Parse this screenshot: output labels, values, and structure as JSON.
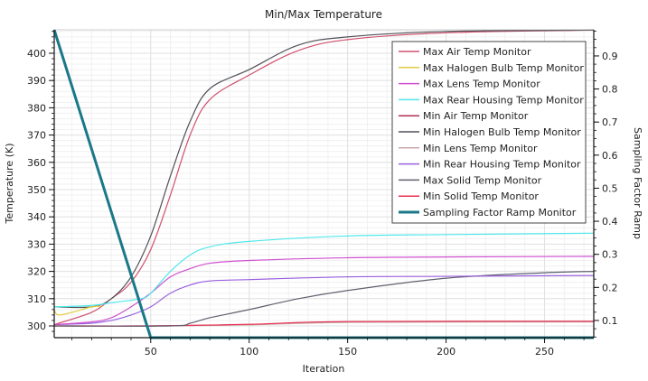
{
  "chart_data": {
    "type": "line",
    "title": "Min/Max Temperature",
    "xlabel": "Iteration",
    "ylabel": "Temperature (K)",
    "y2label": "Sampling Factor Ramp",
    "xlim": [
      1,
      275
    ],
    "ylim": [
      295.7,
      408.6
    ],
    "y2lim": [
      0.048,
      0.979
    ],
    "xticks": [
      50,
      100,
      150,
      200,
      250
    ],
    "yticks": [
      300,
      310,
      320,
      330,
      340,
      350,
      360,
      370,
      380,
      390,
      400
    ],
    "y2ticks": [
      0.1,
      0.2,
      0.3,
      0.4,
      0.5,
      0.6,
      0.7,
      0.8,
      0.9
    ],
    "grid": true,
    "legend_position": "top-right",
    "series": [
      {
        "name": "Max Air Temp Monitor",
        "color": "#d0506e",
        "axis": "left",
        "x": [
          1,
          20,
          30,
          40,
          50,
          60,
          70,
          80,
          100,
          125,
          150,
          200,
          275
        ],
        "y": [
          300.5,
          305,
          310,
          316,
          328,
          348,
          370,
          383,
          392,
          401,
          405,
          407.5,
          408.5
        ]
      },
      {
        "name": "Max Halogen Bulb Temp Monitor",
        "color": "#e0cc40",
        "axis": "left",
        "x": [
          1,
          3,
          10,
          20,
          25
        ],
        "y": [
          306,
          304,
          305,
          307,
          307.2
        ]
      },
      {
        "name": "Max Lens Temp Monitor",
        "color": "#d050d0",
        "axis": "left",
        "x": [
          1,
          20,
          30,
          40,
          50,
          60,
          70,
          80,
          100,
          150,
          200,
          275
        ],
        "y": [
          300.5,
          301.5,
          303,
          307,
          312,
          318,
          321,
          323,
          324,
          325,
          325.3,
          325.5
        ]
      },
      {
        "name": "Max Rear Housing Temp Monitor",
        "color": "#50e8ec",
        "axis": "left",
        "x": [
          1,
          20,
          30,
          45,
          50,
          60,
          70,
          80,
          100,
          150,
          200,
          275
        ],
        "y": [
          307,
          307.5,
          308.5,
          310,
          312,
          320,
          326,
          329,
          331,
          333,
          333.5,
          334
        ]
      },
      {
        "name": "Min Air Temp Monitor",
        "color": "#b03050",
        "axis": "left",
        "x": [
          1,
          50,
          100,
          150,
          275
        ],
        "y": [
          300,
          300,
          300.5,
          301.5,
          301.6
        ]
      },
      {
        "name": "Min Halogen Bulb Temp Monitor",
        "color": "#505058",
        "axis": "left",
        "x": [
          1,
          20,
          30,
          40,
          50,
          60,
          70,
          80,
          100,
          125,
          150,
          200,
          275
        ],
        "y": [
          307,
          307,
          310,
          318,
          333,
          355,
          375,
          387,
          394,
          403,
          406,
          408,
          408.5
        ]
      },
      {
        "name": "Min Lens Temp Monitor",
        "color": "#c8a8a8",
        "axis": "left",
        "x": [
          1,
          50,
          100,
          150,
          275
        ],
        "y": [
          300,
          300,
          300.4,
          301.3,
          301.5
        ]
      },
      {
        "name": "Min Rear Housing Temp Monitor",
        "color": "#9a60e0",
        "axis": "left",
        "x": [
          1,
          20,
          30,
          40,
          50,
          60,
          70,
          80,
          100,
          150,
          200,
          275
        ],
        "y": [
          300.5,
          301,
          302,
          304,
          307,
          312,
          315,
          316.5,
          317,
          318,
          318.2,
          318.5
        ]
      },
      {
        "name": "Max Solid Temp Monitor",
        "color": "#606070",
        "axis": "left",
        "x": [
          1,
          60,
          70,
          80,
          100,
          125,
          150,
          200,
          250,
          275
        ],
        "y": [
          300,
          300,
          301,
          303,
          306,
          310,
          313,
          317.5,
          319.5,
          320
        ]
      },
      {
        "name": "Min Solid Temp Monitor",
        "color": "#e83050",
        "axis": "left",
        "x": [
          1,
          50,
          100,
          150,
          275
        ],
        "y": [
          300,
          300,
          300.6,
          301.6,
          301.7
        ]
      },
      {
        "name": "Sampling Factor Ramp Monitor",
        "color": "#1a7888",
        "axis": "right",
        "x": [
          1,
          50,
          275
        ],
        "y": [
          0.979,
          0.048,
          0.048
        ]
      }
    ]
  }
}
